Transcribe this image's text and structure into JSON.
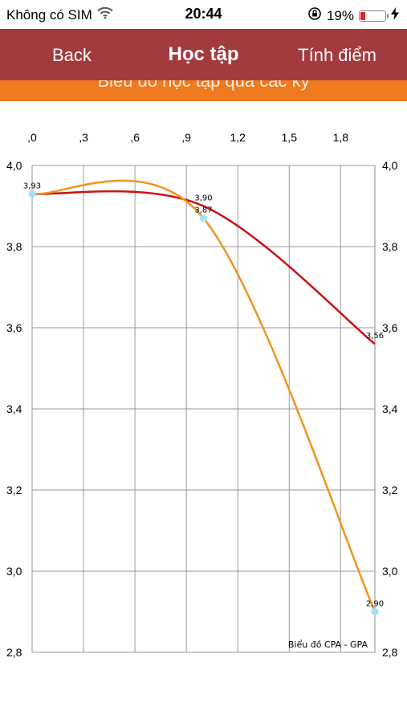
{
  "status_bar": {
    "carrier": "Không có SIM",
    "time": "20:44",
    "battery_percent": "19%",
    "battery_level": 0.19,
    "wifi_icon": "wifi-icon",
    "lock_icon": "orientation-lock-icon",
    "charging_icon": "charging-bolt-icon"
  },
  "nav": {
    "back_label": "Back",
    "title": "Học tập",
    "action_label": "Tính điểm"
  },
  "banner": {
    "text": "Biểu đồ học tập qua các kỳ",
    "color": "#f07a1e"
  },
  "colors": {
    "nav_bg": "#a33a3e",
    "cpa_line": "#cc1111",
    "gpa_line": "#f0941e",
    "point": "#9fe4f5",
    "grid": "#9a9a9a"
  },
  "chart_data": {
    "type": "line",
    "caption": "Biểu đồ CPA - GPA",
    "x_tick_labels": [
      ",0",
      ",3",
      ",6",
      ",9",
      "1,2",
      "1,5",
      "1,8"
    ],
    "x_ticks": [
      0,
      0.3,
      0.6,
      0.9,
      1.2,
      1.5,
      1.8
    ],
    "y_tick_labels": [
      "4,0",
      "3,8",
      "3,6",
      "3,4",
      "3,2",
      "3,0",
      "2,8"
    ],
    "y_ticks": [
      4.0,
      3.8,
      3.6,
      3.4,
      3.2,
      3.0,
      2.8
    ],
    "xlim": [
      0,
      2.0
    ],
    "ylim": [
      2.8,
      4.0
    ],
    "grid": true,
    "series": [
      {
        "x": [
          0,
          1,
          2
        ],
        "values": [
          3.93,
          3.9,
          3.56
        ],
        "data_labels": [
          "",
          "3,90",
          "3,56"
        ]
      },
      {
        "x": [
          0,
          1,
          2
        ],
        "values": [
          3.93,
          3.87,
          2.9
        ],
        "data_labels": [
          "3,93",
          "3,87",
          "2,90"
        ]
      }
    ]
  }
}
